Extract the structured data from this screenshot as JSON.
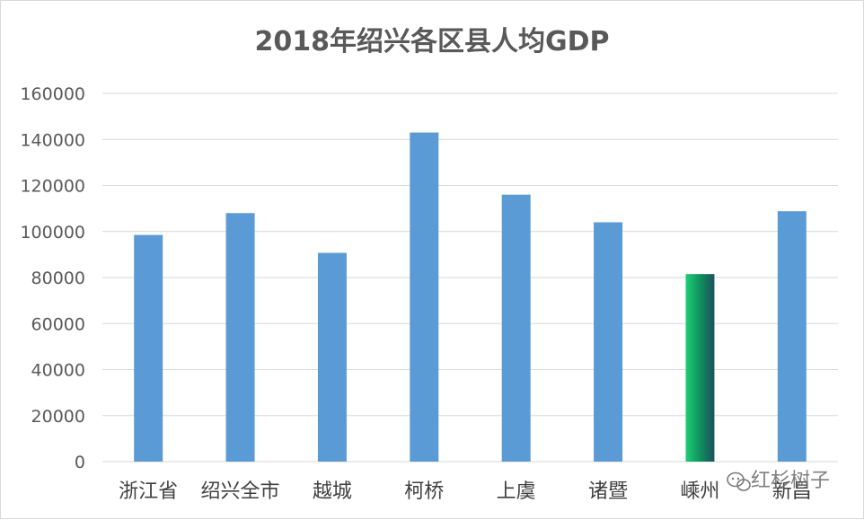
{
  "chart_data": {
    "type": "bar",
    "title": "2018年绍兴各区县人均GDP",
    "xlabel": "",
    "ylabel": "",
    "categories": [
      "浙江省",
      "绍兴全市",
      "越城",
      "柯桥",
      "上虞",
      "诸暨",
      "嵊州",
      "新昌"
    ],
    "values": [
      98500,
      108000,
      90700,
      143000,
      116000,
      104000,
      81500,
      108800
    ],
    "ylim": [
      0,
      160000
    ],
    "yticks": [
      "0",
      "20000",
      "40000",
      "60000",
      "80000",
      "100000",
      "120000",
      "140000",
      "160000"
    ],
    "grid": true,
    "legend": "none",
    "bar_color": "#5b9bd5",
    "highlight_index": 6,
    "highlight_colors": [
      "#1fcf76",
      "#0f8a5a",
      "#1e4f63"
    ]
  },
  "watermark": {
    "text": "红杉树子",
    "icon": "wechat-icon"
  }
}
